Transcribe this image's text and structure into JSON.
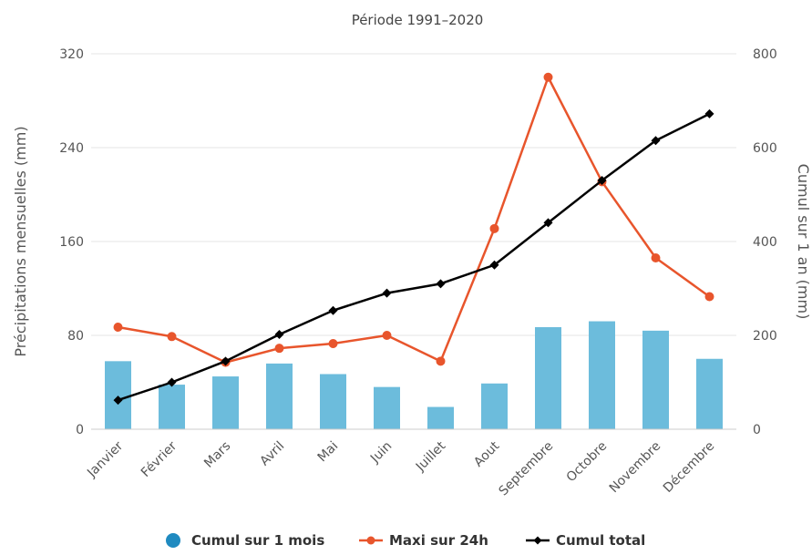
{
  "chart_data": {
    "type": "bar",
    "title": "Période 1991–2020",
    "categories": [
      "Janvier",
      "Février",
      "Mars",
      "Avril",
      "Mai",
      "Juin",
      "Juillet",
      "Aout",
      "Septembre",
      "Octobre",
      "Novembre",
      "Décembre"
    ],
    "ylabel_left": "Précipitations mensuelles (mm)",
    "ylabel_right": "Cumul sur 1 an (mm)",
    "ylim_left": [
      0,
      320
    ],
    "ylim_right": [
      0,
      800
    ],
    "yticks_left": [
      0,
      80,
      160,
      240,
      320
    ],
    "yticks_right": [
      0,
      200,
      400,
      600,
      800
    ],
    "grid": true,
    "legend_position": "bottom",
    "series": [
      {
        "name": "Cumul sur 1 mois",
        "type": "bar",
        "axis": "left",
        "color": "#6cbcdc",
        "legend_color": "#1f8ac0",
        "values": [
          58,
          38,
          45,
          56,
          47,
          36,
          19,
          39,
          87,
          92,
          84,
          60
        ]
      },
      {
        "name": "Maxi sur 24h",
        "type": "line",
        "axis": "left",
        "color": "#e8552c",
        "values": [
          87,
          79,
          57,
          69,
          73,
          80,
          58,
          171,
          300,
          211,
          146,
          113
        ]
      },
      {
        "name": "Cumul total",
        "type": "line",
        "axis": "right",
        "color": "#000000",
        "values": [
          62,
          100,
          145,
          202,
          253,
          290,
          310,
          350,
          440,
          530,
          615,
          672
        ]
      }
    ]
  }
}
